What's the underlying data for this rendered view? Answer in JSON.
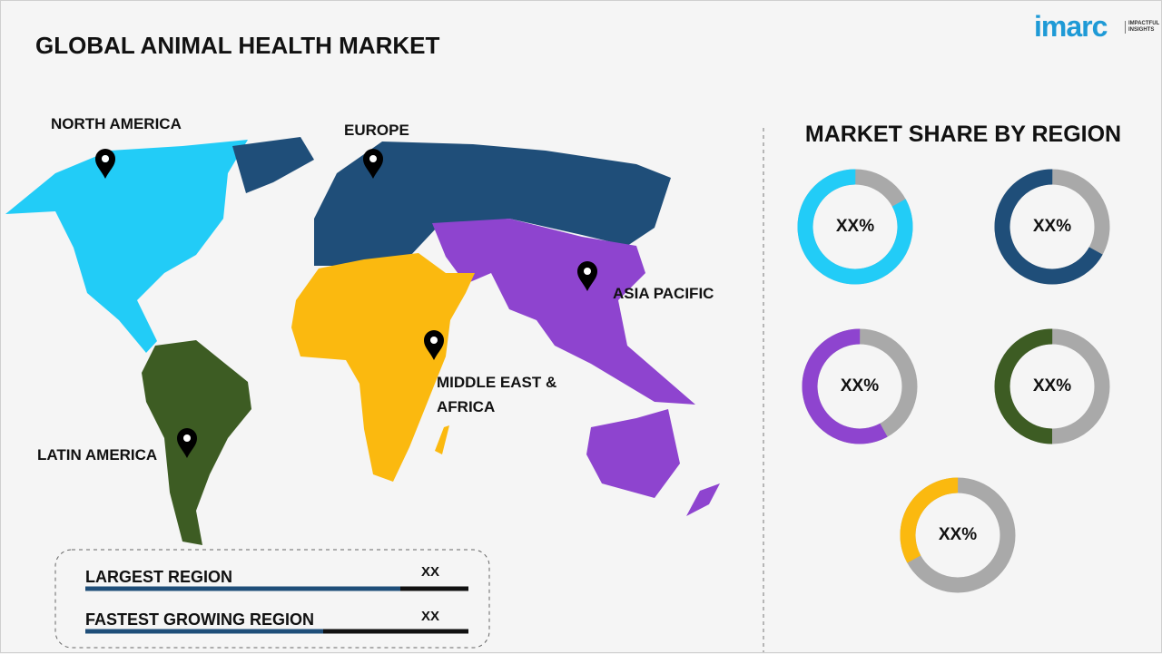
{
  "header": {
    "title": "GLOBAL ANIMAL HEALTH MARKET",
    "logo": {
      "brand": "imarc",
      "tagline": "IMPACTFUL INSIGHTS"
    }
  },
  "map": {
    "regions": [
      {
        "label": "NORTH AMERICA"
      },
      {
        "label": "EUROPE"
      },
      {
        "label": "ASIA PACIFIC"
      },
      {
        "label": "MIDDLE EAST & AFRICA"
      },
      {
        "label": "LATIN AMERICA"
      }
    ]
  },
  "summary": {
    "rows": [
      {
        "label": "LARGEST REGION",
        "value": "XX"
      },
      {
        "label": "FASTEST GROWING REGION",
        "value": "XX"
      }
    ]
  },
  "share_panel": {
    "title": "MARKET SHARE BY REGION",
    "donuts": [
      {
        "label": "XX%"
      },
      {
        "label": "XX%"
      },
      {
        "label": "XX%"
      },
      {
        "label": "XX%"
      },
      {
        "label": "XX%"
      }
    ]
  }
}
